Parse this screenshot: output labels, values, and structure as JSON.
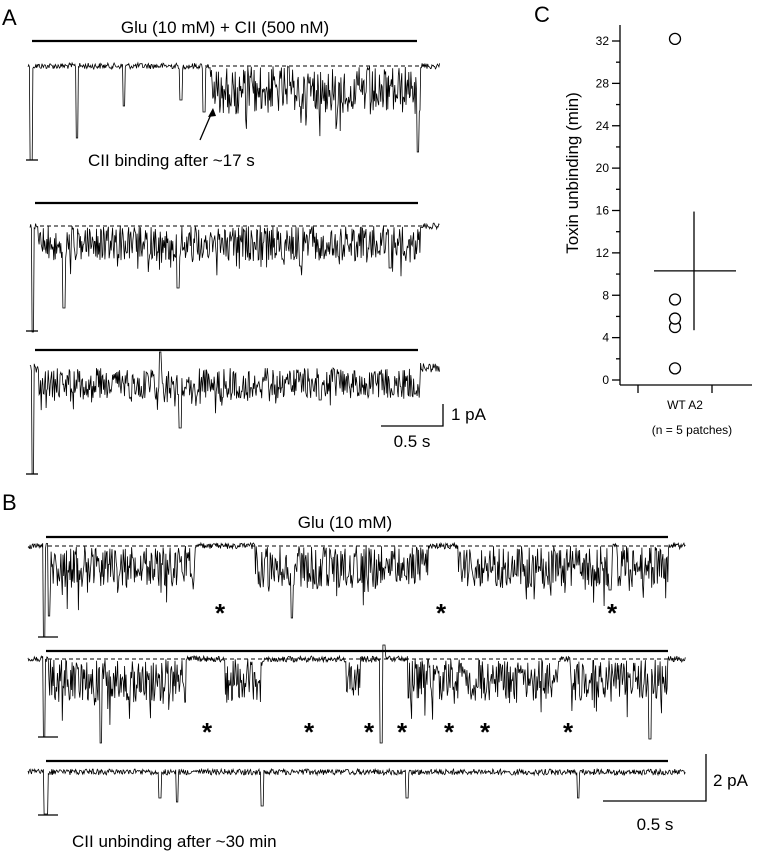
{
  "panels": {
    "a": {
      "letter": "A",
      "application_label": "Glu (10 mM) + CII (500 nM)",
      "annotation": "CII binding after ~17 s"
    },
    "b": {
      "letter": "B",
      "application_label": "Glu (10 mM)",
      "annotation": "CII unbinding after ~30 min",
      "star": "*"
    },
    "c": {
      "letter": "C"
    }
  },
  "scalebars": {
    "a": {
      "amplitude": "1 pA",
      "time": "0.5 s"
    },
    "b": {
      "amplitude": "2 pA",
      "time": "0.5 s"
    }
  },
  "chart_data": {
    "type": "scatter",
    "ylabel": "Toxin unbinding (min)",
    "ylim": [
      0,
      33
    ],
    "yticks": [
      0,
      4,
      8,
      12,
      16,
      20,
      24,
      28,
      32
    ],
    "categories": [
      "WT A2"
    ],
    "category_note": "(n = 5 patches)",
    "points": [
      1.1,
      5.0,
      5.8,
      7.6,
      32.2
    ],
    "mean": 10.3,
    "error": 5.6
  }
}
